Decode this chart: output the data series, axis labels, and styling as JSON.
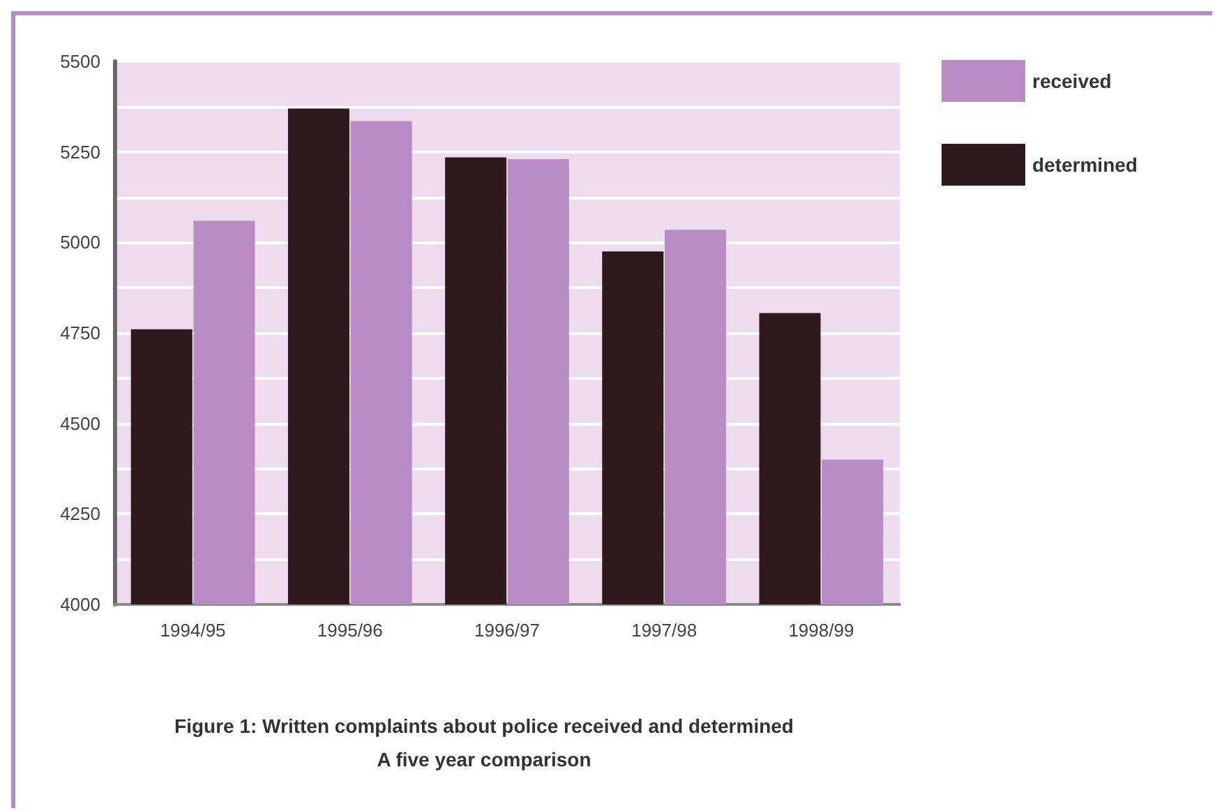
{
  "chart_data": {
    "type": "bar",
    "title": "Figure 1: Written complaints about police received and determined",
    "subtitle": "A five year comparison",
    "categories": [
      "1994/95",
      "1995/96",
      "1996/97",
      "1997/98",
      "1998/99"
    ],
    "series": [
      {
        "name": "received",
        "color": "#b98cc6",
        "values": [
          5060,
          5335,
          5230,
          5035,
          4400
        ]
      },
      {
        "name": "determined",
        "color": "#2e1a1c",
        "values": [
          4760,
          5370,
          5235,
          4975,
          4805
        ]
      }
    ],
    "ylim": [
      4000,
      5500
    ],
    "yticks": [
      4000,
      {
        "value": 4125,
        "label": null
      },
      4250,
      {
        "value": 4375,
        "label": null
      },
      4500,
      {
        "value": 4625,
        "label": null
      },
      4750,
      {
        "value": 4875,
        "label": null
      },
      5000,
      {
        "value": 5125,
        "label": null
      },
      5250,
      {
        "value": 5375,
        "label": null
      },
      5500
    ],
    "grid": "y",
    "legend": "top right"
  }
}
